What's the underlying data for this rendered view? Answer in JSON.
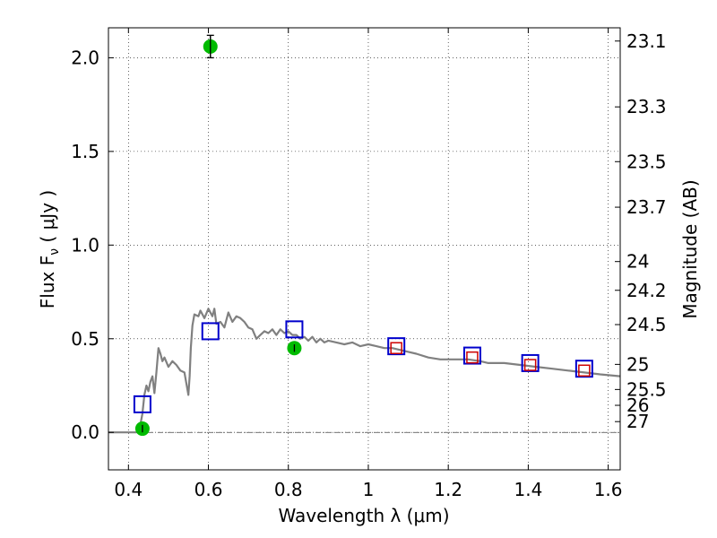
{
  "chart_data": {
    "type": "scatter",
    "xlabel": "Wavelength  λ (μm)",
    "ylabel": "Flux  F",
    "ylabel_sub": "ν",
    "ylabel_unit": " ( μJy )",
    "y2label": "Magnitude (AB)",
    "xlim": [
      0.35,
      1.63
    ],
    "ylim": [
      -0.2,
      2.16
    ],
    "grid": true,
    "x_ticks": [
      0.4,
      0.6,
      0.8,
      1.0,
      1.2,
      1.4,
      1.6
    ],
    "x_tick_labels": [
      "0.4",
      "0.6",
      "0.8",
      "1",
      "1.2",
      "1.4",
      "1.6"
    ],
    "y_ticks": [
      0.0,
      0.5,
      1.0,
      1.5,
      2.0
    ],
    "y_tick_labels": [
      "0.0",
      "0.5",
      "1.0",
      "1.5",
      "2.0"
    ],
    "mag_ticks": [
      "23.1",
      "23.3",
      "23.5",
      "23.7",
      "24",
      "24.2",
      "24.5",
      "25",
      "25.5",
      "26",
      "27"
    ],
    "colors": {
      "spectrum": "#808080",
      "observed": "#00bb00",
      "model_blue": "#0000cc",
      "model_red": "#cc0000"
    },
    "series": [
      {
        "kind": "line",
        "color": "#808080",
        "points": [
          [
            0.35,
            0.0
          ],
          [
            0.42,
            0.0
          ],
          [
            0.428,
            0.02
          ],
          [
            0.435,
            0.1
          ],
          [
            0.44,
            0.2
          ],
          [
            0.445,
            0.25
          ],
          [
            0.45,
            0.22
          ],
          [
            0.455,
            0.27
          ],
          [
            0.46,
            0.3
          ],
          [
            0.465,
            0.21
          ],
          [
            0.47,
            0.32
          ],
          [
            0.475,
            0.45
          ],
          [
            0.48,
            0.42
          ],
          [
            0.485,
            0.38
          ],
          [
            0.49,
            0.4
          ],
          [
            0.5,
            0.35
          ],
          [
            0.51,
            0.38
          ],
          [
            0.52,
            0.36
          ],
          [
            0.53,
            0.33
          ],
          [
            0.54,
            0.32
          ],
          [
            0.545,
            0.26
          ],
          [
            0.55,
            0.2
          ],
          [
            0.553,
            0.3
          ],
          [
            0.556,
            0.45
          ],
          [
            0.56,
            0.57
          ],
          [
            0.565,
            0.63
          ],
          [
            0.575,
            0.62
          ],
          [
            0.58,
            0.65
          ],
          [
            0.59,
            0.61
          ],
          [
            0.6,
            0.66
          ],
          [
            0.61,
            0.62
          ],
          [
            0.615,
            0.66
          ],
          [
            0.62,
            0.58
          ],
          [
            0.63,
            0.59
          ],
          [
            0.64,
            0.56
          ],
          [
            0.65,
            0.64
          ],
          [
            0.66,
            0.59
          ],
          [
            0.67,
            0.62
          ],
          [
            0.68,
            0.61
          ],
          [
            0.69,
            0.59
          ],
          [
            0.7,
            0.56
          ],
          [
            0.71,
            0.55
          ],
          [
            0.72,
            0.5
          ],
          [
            0.73,
            0.52
          ],
          [
            0.74,
            0.54
          ],
          [
            0.75,
            0.53
          ],
          [
            0.76,
            0.55
          ],
          [
            0.77,
            0.52
          ],
          [
            0.78,
            0.55
          ],
          [
            0.79,
            0.53
          ],
          [
            0.8,
            0.54
          ],
          [
            0.81,
            0.52
          ],
          [
            0.82,
            0.52
          ],
          [
            0.83,
            0.5
          ],
          [
            0.84,
            0.51
          ],
          [
            0.85,
            0.49
          ],
          [
            0.86,
            0.51
          ],
          [
            0.87,
            0.48
          ],
          [
            0.88,
            0.5
          ],
          [
            0.89,
            0.48
          ],
          [
            0.9,
            0.49
          ],
          [
            0.92,
            0.48
          ],
          [
            0.94,
            0.47
          ],
          [
            0.96,
            0.48
          ],
          [
            0.98,
            0.46
          ],
          [
            1.0,
            0.47
          ],
          [
            1.02,
            0.46
          ],
          [
            1.04,
            0.45
          ],
          [
            1.06,
            0.45
          ],
          [
            1.08,
            0.44
          ],
          [
            1.1,
            0.43
          ],
          [
            1.12,
            0.42
          ],
          [
            1.15,
            0.4
          ],
          [
            1.18,
            0.39
          ],
          [
            1.2,
            0.39
          ],
          [
            1.22,
            0.39
          ],
          [
            1.25,
            0.39
          ],
          [
            1.28,
            0.38
          ],
          [
            1.3,
            0.37
          ],
          [
            1.34,
            0.37
          ],
          [
            1.38,
            0.36
          ],
          [
            1.42,
            0.35
          ],
          [
            1.46,
            0.34
          ],
          [
            1.5,
            0.33
          ],
          [
            1.54,
            0.32
          ],
          [
            1.58,
            0.31
          ],
          [
            1.63,
            0.3
          ]
        ]
      },
      {
        "kind": "points",
        "marker": "circle",
        "color": "#00bb00",
        "points": [
          {
            "x": 0.435,
            "y": 0.02,
            "err": 0.02
          },
          {
            "x": 0.605,
            "y": 2.06,
            "err": 0.06
          },
          {
            "x": 0.815,
            "y": 0.45,
            "err": 0.02
          }
        ]
      },
      {
        "kind": "points",
        "marker": "square",
        "color": "#0000cc",
        "points": [
          {
            "x": 0.435,
            "y": 0.15
          },
          {
            "x": 0.605,
            "y": 0.54
          },
          {
            "x": 0.815,
            "y": 0.55
          },
          {
            "x": 1.07,
            "y": 0.46
          },
          {
            "x": 1.26,
            "y": 0.41
          },
          {
            "x": 1.405,
            "y": 0.37
          },
          {
            "x": 1.54,
            "y": 0.34
          }
        ]
      },
      {
        "kind": "points",
        "marker": "square-small",
        "color": "#cc0000",
        "points": [
          {
            "x": 1.07,
            "y": 0.45
          },
          {
            "x": 1.26,
            "y": 0.4
          },
          {
            "x": 1.405,
            "y": 0.36
          },
          {
            "x": 1.54,
            "y": 0.33
          }
        ]
      }
    ]
  }
}
